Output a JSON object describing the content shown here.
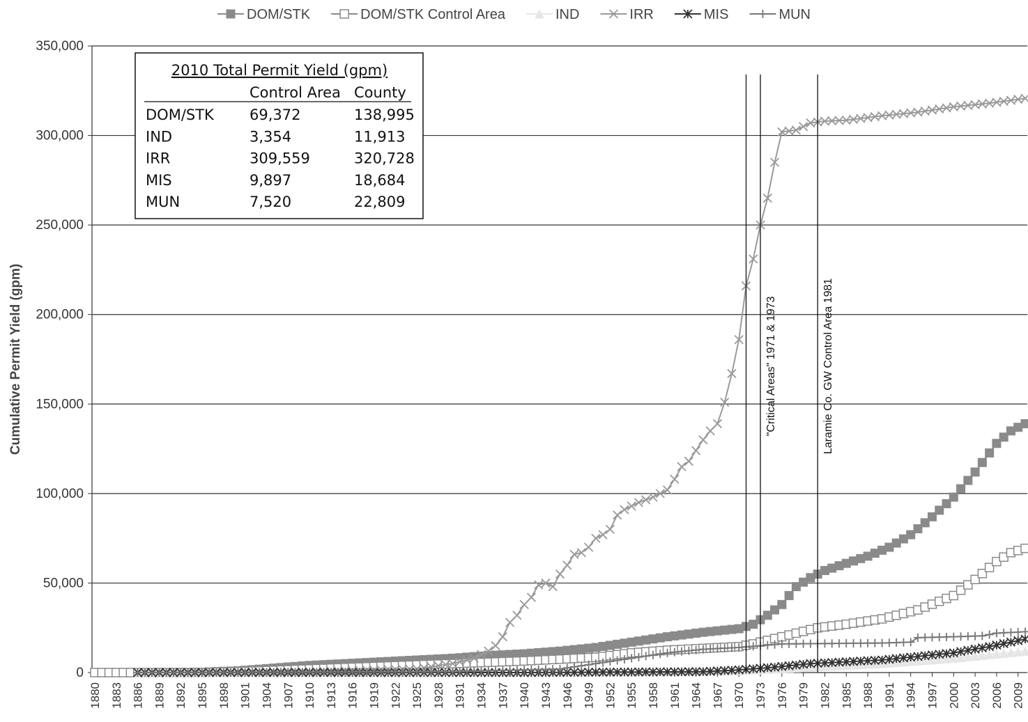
{
  "chart_data": {
    "type": "line",
    "ylabel": "Cumulative Permit Yield (gpm)",
    "xlabel": "",
    "ylim": [
      0,
      350000
    ],
    "yticks": [
      "0",
      "50,000",
      "100,000",
      "150,000",
      "200,000",
      "250,000",
      "300,000",
      "350,000"
    ],
    "xlim": [
      1880,
      2010
    ],
    "xtick_start": 1880,
    "xtick_step": 3,
    "xtick_end": 2009,
    "grid": "horizontal",
    "legend_position": "top",
    "legend": [
      {
        "label": "DOM/STK",
        "color": "#8a8a8a",
        "marker": "square-filled"
      },
      {
        "label": "DOM/STK Control Area",
        "color": "#8a8a8a",
        "marker": "square-open"
      },
      {
        "label": "IND",
        "color": "#e6e6e6",
        "marker": "triangle"
      },
      {
        "label": "IRR",
        "color": "#9a9a9a",
        "marker": "x"
      },
      {
        "label": "MIS",
        "color": "#333333",
        "marker": "star"
      },
      {
        "label": "MUN",
        "color": "#777777",
        "marker": "plus"
      }
    ],
    "series": [
      {
        "name": "DOM/STK",
        "color": "#8a8a8a",
        "marker": "square-filled",
        "points": [
          [
            1886,
            0
          ],
          [
            1895,
            200
          ],
          [
            1900,
            1000
          ],
          [
            1905,
            2500
          ],
          [
            1910,
            4000
          ],
          [
            1915,
            5000
          ],
          [
            1920,
            6000
          ],
          [
            1925,
            7000
          ],
          [
            1930,
            8000
          ],
          [
            1935,
            9500
          ],
          [
            1940,
            10500
          ],
          [
            1945,
            12000
          ],
          [
            1950,
            14000
          ],
          [
            1955,
            17000
          ],
          [
            1960,
            20000
          ],
          [
            1965,
            22500
          ],
          [
            1970,
            24500
          ],
          [
            1972,
            27000
          ],
          [
            1974,
            32000
          ],
          [
            1976,
            38000
          ],
          [
            1978,
            48000
          ],
          [
            1980,
            53000
          ],
          [
            1982,
            57000
          ],
          [
            1985,
            61000
          ],
          [
            1988,
            65000
          ],
          [
            1991,
            70000
          ],
          [
            1994,
            77000
          ],
          [
            1997,
            87000
          ],
          [
            2000,
            98000
          ],
          [
            2003,
            112000
          ],
          [
            2006,
            128000
          ],
          [
            2008,
            135000
          ],
          [
            2010,
            138995
          ]
        ]
      },
      {
        "name": "DOM/STK Control Area",
        "color": "#8a8a8a",
        "marker": "square-open",
        "points": [
          [
            1880,
            0
          ],
          [
            1886,
            0
          ],
          [
            1895,
            0
          ],
          [
            1900,
            500
          ],
          [
            1905,
            1200
          ],
          [
            1910,
            2000
          ],
          [
            1920,
            3500
          ],
          [
            1930,
            5000
          ],
          [
            1940,
            6500
          ],
          [
            1950,
            8500
          ],
          [
            1955,
            11000
          ],
          [
            1960,
            12500
          ],
          [
            1965,
            13500
          ],
          [
            1970,
            14500
          ],
          [
            1972,
            16000
          ],
          [
            1975,
            19000
          ],
          [
            1978,
            22000
          ],
          [
            1981,
            25000
          ],
          [
            1985,
            27000
          ],
          [
            1990,
            30000
          ],
          [
            1995,
            35000
          ],
          [
            2000,
            43000
          ],
          [
            2003,
            52000
          ],
          [
            2006,
            62000
          ],
          [
            2008,
            67000
          ],
          [
            2010,
            69372
          ]
        ]
      },
      {
        "name": "IND",
        "color": "#e6e6e6",
        "marker": "triangle",
        "points": [
          [
            1886,
            0
          ],
          [
            1940,
            0
          ],
          [
            1960,
            500
          ],
          [
            1970,
            1000
          ],
          [
            1980,
            3000
          ],
          [
            1990,
            5000
          ],
          [
            2000,
            8000
          ],
          [
            2010,
            11913
          ]
        ]
      },
      {
        "name": "IRR",
        "color": "#9a9a9a",
        "marker": "x",
        "points": [
          [
            1886,
            0
          ],
          [
            1910,
            500
          ],
          [
            1925,
            2000
          ],
          [
            1930,
            5000
          ],
          [
            1933,
            8000
          ],
          [
            1935,
            12000
          ],
          [
            1936,
            15000
          ],
          [
            1937,
            20000
          ],
          [
            1938,
            28000
          ],
          [
            1939,
            32000
          ],
          [
            1940,
            38000
          ],
          [
            1941,
            42000
          ],
          [
            1942,
            49000
          ],
          [
            1943,
            50000
          ],
          [
            1944,
            48000
          ],
          [
            1945,
            55000
          ],
          [
            1946,
            60000
          ],
          [
            1947,
            66000
          ],
          [
            1948,
            67000
          ],
          [
            1949,
            70000
          ],
          [
            1950,
            75000
          ],
          [
            1951,
            77000
          ],
          [
            1952,
            80000
          ],
          [
            1953,
            88000
          ],
          [
            1954,
            91000
          ],
          [
            1955,
            93000
          ],
          [
            1956,
            95000
          ],
          [
            1958,
            98000
          ],
          [
            1960,
            102000
          ],
          [
            1961,
            108000
          ],
          [
            1962,
            115000
          ],
          [
            1963,
            118000
          ],
          [
            1964,
            124000
          ],
          [
            1965,
            130000
          ],
          [
            1966,
            135000
          ],
          [
            1967,
            139000
          ],
          [
            1968,
            151000
          ],
          [
            1969,
            167000
          ],
          [
            1970,
            186000
          ],
          [
            1971,
            216000
          ],
          [
            1972,
            231000
          ],
          [
            1973,
            250000
          ],
          [
            1974,
            265000
          ],
          [
            1975,
            285000
          ],
          [
            1976,
            302000
          ],
          [
            1978,
            303000
          ],
          [
            1980,
            307000
          ],
          [
            1982,
            308000
          ],
          [
            1985,
            308500
          ],
          [
            1990,
            311000
          ],
          [
            1995,
            313000
          ],
          [
            2000,
            316000
          ],
          [
            2005,
            318000
          ],
          [
            2010,
            320728
          ]
        ]
      },
      {
        "name": "MIS",
        "color": "#333333",
        "marker": "star",
        "points": [
          [
            1886,
            0
          ],
          [
            1940,
            0
          ],
          [
            1965,
            500
          ],
          [
            1970,
            1500
          ],
          [
            1975,
            3000
          ],
          [
            1980,
            5000
          ],
          [
            1985,
            6000
          ],
          [
            1990,
            7000
          ],
          [
            1995,
            9000
          ],
          [
            2000,
            11000
          ],
          [
            2005,
            14500
          ],
          [
            2010,
            18684
          ]
        ]
      },
      {
        "name": "MUN",
        "color": "#777777",
        "marker": "plus",
        "points": [
          [
            1886,
            0
          ],
          [
            1930,
            500
          ],
          [
            1945,
            2000
          ],
          [
            1955,
            8000
          ],
          [
            1960,
            11000
          ],
          [
            1965,
            13000
          ],
          [
            1970,
            14000
          ],
          [
            1973,
            15000
          ],
          [
            1976,
            16000
          ],
          [
            1990,
            16500
          ],
          [
            1994,
            17000
          ],
          [
            1995,
            19500
          ],
          [
            2000,
            20000
          ],
          [
            2004,
            20500
          ],
          [
            2006,
            22000
          ],
          [
            2010,
            22809
          ]
        ]
      }
    ],
    "annotations": [
      {
        "year": 1971
      },
      {
        "year": 1973,
        "label": "\"Critical Areas\" 1971 & 1973"
      },
      {
        "year": 1981,
        "label": "Laramie Co. GW Control Area 1981"
      }
    ],
    "inset_table": {
      "title": "2010 Total Permit Yield (gpm)",
      "headers": [
        "",
        "Control Area",
        "County"
      ],
      "rows": [
        [
          "DOM/STK",
          "69,372",
          "138,995"
        ],
        [
          "IND",
          "3,354",
          "11,913"
        ],
        [
          "IRR",
          "309,559",
          "320,728"
        ],
        [
          "MIS",
          "9,897",
          "18,684"
        ],
        [
          "MUN",
          "7,520",
          "22,809"
        ]
      ]
    }
  }
}
